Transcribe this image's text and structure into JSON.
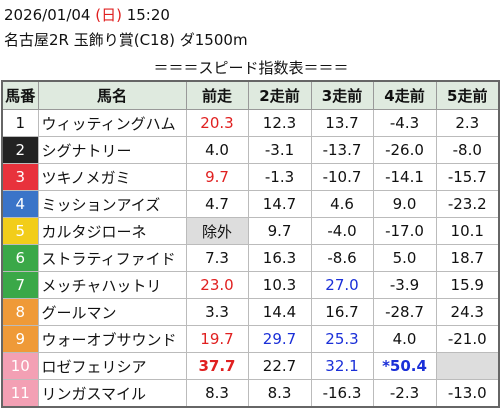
{
  "header": {
    "date_line": [
      {
        "text": "2026/01/04 "
      },
      {
        "text": "(日)",
        "color": "#e02020"
      },
      {
        "text": " 15:20"
      }
    ],
    "race": "名古屋2R 玉飾り賞(C18) ダ1500m",
    "title": "＝＝＝スピード指数表＝＝＝"
  },
  "table": {
    "columns": [
      "馬番",
      "馬名",
      "前走",
      "2走前",
      "3走前",
      "4走前",
      "5走前"
    ],
    "header_color": "#dfeadf",
    "rows": [
      {
        "number": "1",
        "frame_color": "#ffffff",
        "number_color": "#111111",
        "name": "ウィッティングハム",
        "cells": [
          {
            "text": "20.3",
            "color": "#e02020"
          },
          "12.3",
          "13.7",
          "-4.3",
          "2.3"
        ]
      },
      {
        "number": "2",
        "frame_color": "#222222",
        "number_color": "#ffffff",
        "name": "シグナトリー",
        "cells": [
          "4.0",
          "-3.1",
          "-13.7",
          "-26.0",
          "-8.0"
        ]
      },
      {
        "number": "3",
        "frame_color": "#e8323c",
        "number_color": "#ffffff",
        "name": "ツキノメガミ",
        "cells": [
          {
            "text": "9.7",
            "color": "#e02020"
          },
          "-1.3",
          "-10.7",
          "-14.1",
          "-15.7"
        ]
      },
      {
        "number": "4",
        "frame_color": "#3a74c8",
        "number_color": "#ffffff",
        "name": "ミッションアイズ",
        "cells": [
          "4.7",
          "14.7",
          "4.6",
          "9.0",
          "-23.2"
        ]
      },
      {
        "number": "5",
        "frame_color": "#f2cd1a",
        "number_color": "#ffffff",
        "name": "カルタジローネ",
        "cells": [
          {
            "text": "除外",
            "bg": "#dddddd"
          },
          "9.7",
          "-4.0",
          "-17.0",
          "10.1"
        ]
      },
      {
        "number": "6",
        "frame_color": "#3aa848",
        "number_color": "#ffffff",
        "name": "ストラティファイド",
        "cells": [
          "7.3",
          "16.3",
          "-8.6",
          "5.0",
          "18.7"
        ]
      },
      {
        "number": "7",
        "frame_color": "#3aa848",
        "number_color": "#ffffff",
        "name": "メッチャハットリ",
        "cells": [
          {
            "text": "23.0",
            "color": "#e02020"
          },
          "10.3",
          {
            "text": "27.0",
            "color": "#1a2fd8"
          },
          "-3.9",
          "15.9"
        ]
      },
      {
        "number": "8",
        "frame_color": "#ef9a38",
        "number_color": "#ffffff",
        "name": "グールマン",
        "cells": [
          "3.3",
          "14.4",
          "16.7",
          "-28.7",
          "24.3"
        ]
      },
      {
        "number": "9",
        "frame_color": "#ef9a38",
        "number_color": "#ffffff",
        "name": "ウォーオブサウンド",
        "cells": [
          {
            "text": "19.7",
            "color": "#e02020"
          },
          {
            "text": "29.7",
            "color": "#1a2fd8"
          },
          {
            "text": "25.3",
            "color": "#1a2fd8"
          },
          "4.0",
          "-21.0"
        ]
      },
      {
        "number": "10",
        "frame_color": "#f3a0b4",
        "number_color": "#ffffff",
        "name": "ロゼフェリシア",
        "cells": [
          {
            "text": "37.7",
            "color": "#e02020",
            "bold": true
          },
          "22.7",
          {
            "text": "32.1",
            "color": "#1a2fd8"
          },
          {
            "text": "*50.4",
            "color": "#1a2fd8",
            "bold": true
          },
          {
            "bg": "#dddddd"
          }
        ]
      },
      {
        "number": "11",
        "frame_color": "#f3a0b4",
        "number_color": "#ffffff",
        "name": "リンガスマイル",
        "cells": [
          "8.3",
          "8.3",
          "-16.3",
          "-2.3",
          "-13.0"
        ]
      }
    ]
  }
}
